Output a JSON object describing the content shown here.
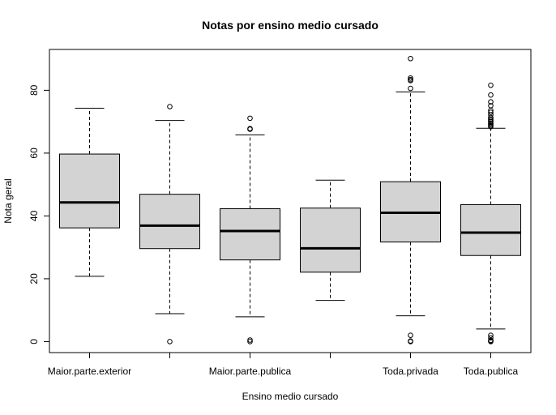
{
  "chart_data": {
    "type": "boxplot",
    "title": "Notas por ensino medio cursado",
    "xlabel": "Ensino medio cursado",
    "ylabel": "Nota geral",
    "ylim": [
      -3.5,
      93
    ],
    "yticks": [
      0,
      20,
      40,
      60,
      80
    ],
    "grid": false,
    "categories": [
      {
        "name": "Maior.parte.exterior",
        "label": "Maior.parte.exterior",
        "min": 20.8,
        "q1": 36.2,
        "median": 44.3,
        "q3": 59.7,
        "max": 74.3,
        "outliers": []
      },
      {
        "name": "",
        "label": "",
        "min": 8.9,
        "q1": 29.6,
        "median": 36.9,
        "q3": 46.9,
        "max": 70.4,
        "outliers": [
          74.8,
          0
        ]
      },
      {
        "name": "Maior.parte.publica",
        "label": "Maior.parte.publica",
        "min": 7.9,
        "q1": 26.0,
        "median": 35.2,
        "q3": 42.3,
        "max": 65.8,
        "outliers": [
          71.1,
          67.6,
          67.8,
          0.5,
          0
        ]
      },
      {
        "name": "",
        "label": "",
        "min": 13.1,
        "q1": 22.1,
        "median": 29.7,
        "q3": 42.5,
        "max": 51.4,
        "outliers": []
      },
      {
        "name": "Toda.privada",
        "label": "Toda.privada",
        "min": 8.2,
        "q1": 31.7,
        "median": 41.0,
        "q3": 50.9,
        "max": 79.5,
        "outliers": [
          90.1,
          83.9,
          83.4,
          83.1,
          80.6,
          2.0,
          0.2,
          0
        ]
      },
      {
        "name": "Toda.publica",
        "label": "Toda.publica",
        "min": 4.0,
        "q1": 27.4,
        "median": 34.7,
        "q3": 43.6,
        "max": 67.9,
        "outliers": [
          81.6,
          78.5,
          76.3,
          75.1,
          73.6,
          73.0,
          72.2,
          71.3,
          70.8,
          70.4,
          70.0,
          69.5,
          69.1,
          68.7,
          68.4,
          2.0,
          1.2,
          0.4,
          0.2,
          0
        ]
      }
    ]
  }
}
